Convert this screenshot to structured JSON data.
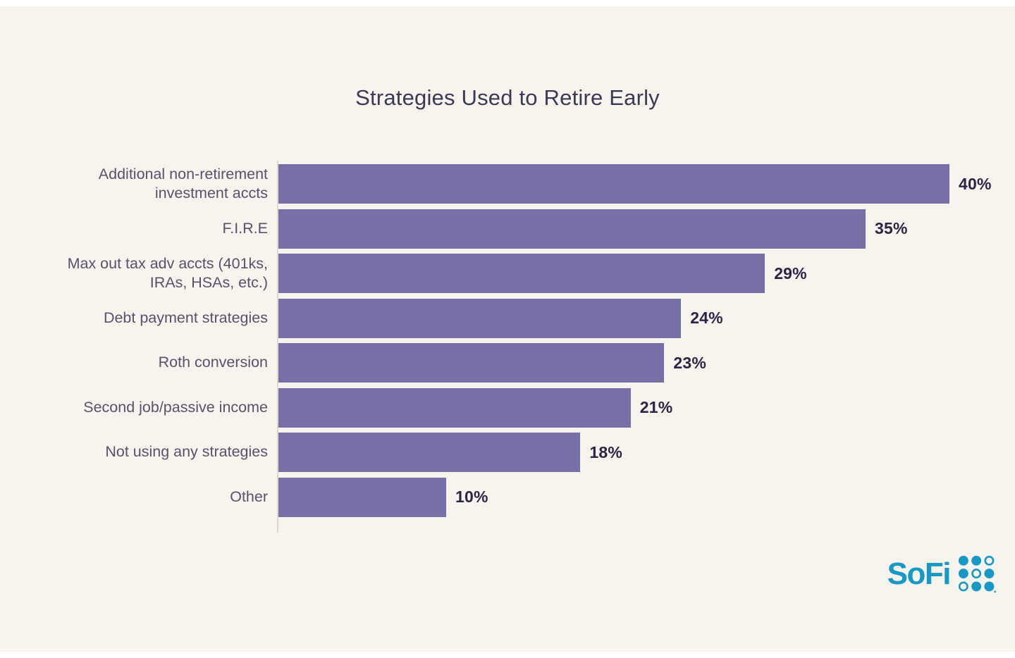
{
  "title": "Strategies Used to Retire Early",
  "brand": {
    "name": "SoFi",
    "color": "#1798c6"
  },
  "chart_data": {
    "type": "bar",
    "orientation": "horizontal",
    "title": "Strategies Used to Retire Early",
    "categories": [
      "Additional non-retirement\ninvestment accts",
      "F.I.R.E",
      "Max out tax adv accts (401ks,\nIRAs, HSAs, etc.)",
      "Debt payment strategies",
      "Roth conversion",
      "Second job/passive income",
      "Not using any strategies",
      "Other"
    ],
    "values": [
      40,
      35,
      29,
      24,
      23,
      21,
      18,
      10
    ],
    "value_labels": [
      "40%",
      "35%",
      "29%",
      "24%",
      "23%",
      "21%",
      "18%",
      "10%"
    ],
    "xlabel": "",
    "ylabel": "",
    "xlim": [
      0,
      40
    ],
    "grid": false,
    "legend": "none",
    "bar_color": "#7670a6",
    "category_label_color": "#56516c",
    "value_label_color": "#2b2447",
    "title_color": "#3c3857",
    "background_color": "#f7f4ee"
  }
}
